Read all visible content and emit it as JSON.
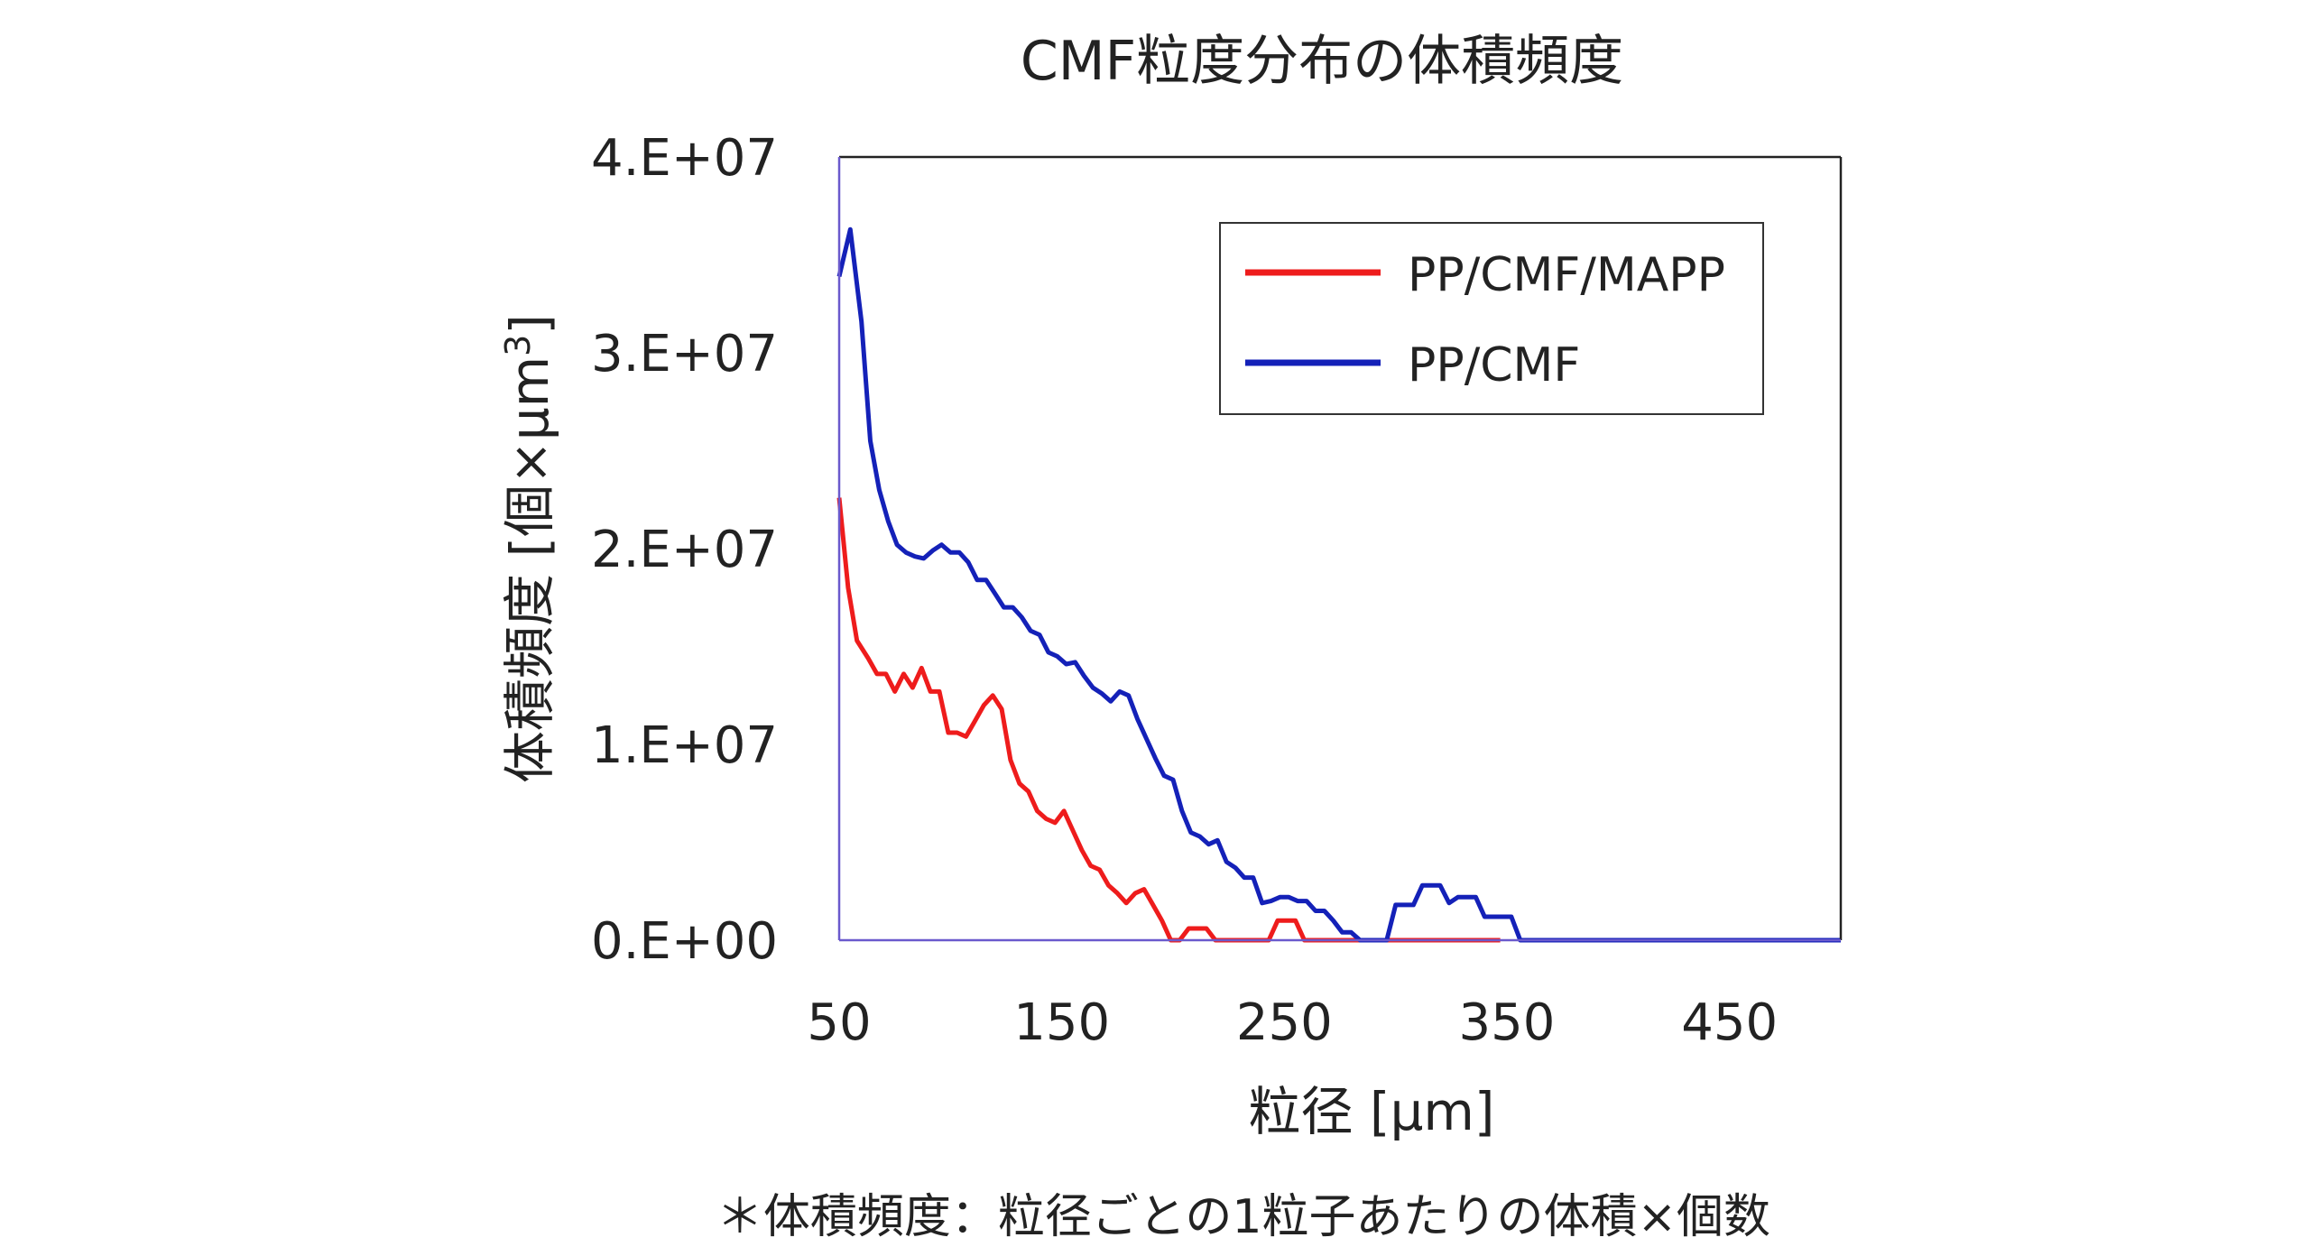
{
  "chart_data": {
    "type": "line",
    "title": "CMF粒度分布の体積頻度",
    "xlabel": "粒径 [μm]",
    "ylabel": "体積頻度 [個×μm",
    "ylabel_sup": "3",
    "ylabel_end": "]",
    "xlim": [
      50,
      500
    ],
    "ylim": [
      0,
      40000000
    ],
    "xticks": [
      50,
      150,
      250,
      350,
      450
    ],
    "xtick_labels": [
      "50",
      "150",
      "250",
      "350",
      "450"
    ],
    "yticks": [
      0,
      10000000,
      20000000,
      30000000,
      40000000
    ],
    "ytick_labels": [
      "0.E+00",
      "1.E+07",
      "2.E+07",
      "3.E+07",
      "4.E+07"
    ],
    "grid": false,
    "legend_position": "top-right",
    "footnote": "＊体積頻度：粒径ごとの1粒子あたりの体積×個数",
    "series": [
      {
        "name": "PP/CMF/MAPP",
        "color": "#ee1c1c",
        "x": [
          50,
          54,
          58,
          63,
          67,
          71,
          75,
          79,
          83,
          87,
          91,
          95,
          99,
          103,
          107,
          111,
          115,
          119,
          123,
          127,
          131,
          135,
          139,
          143,
          147,
          151,
          155,
          159,
          163,
          167,
          171,
          175,
          179,
          183,
          187,
          191,
          195,
          199,
          203,
          207,
          211,
          215,
          219,
          223,
          227,
          231,
          235,
          239,
          243,
          247,
          251,
          255,
          259,
          263,
          267,
          271,
          275,
          279,
          283,
          287,
          291,
          295,
          299,
          303,
          307,
          311,
          315,
          319,
          323,
          327,
          331,
          335,
          339,
          343,
          347
        ],
        "values": [
          22600000,
          18000000,
          15300000,
          14400000,
          13600000,
          13600000,
          12700000,
          13600000,
          12900000,
          13900000,
          12700000,
          12700000,
          10600000,
          10600000,
          10400000,
          11200000,
          12000000,
          12500000,
          11800000,
          9200000,
          8000000,
          7600000,
          6600000,
          6200000,
          6000000,
          6600000,
          5600000,
          4600000,
          3800000,
          3600000,
          2800000,
          2400000,
          1900000,
          2400000,
          2600000,
          1800000,
          1000000,
          0,
          0,
          600000,
          600000,
          600000,
          0,
          0,
          0,
          0,
          0,
          0,
          0,
          1000000,
          1000000,
          1000000,
          0,
          0,
          0,
          0,
          0,
          0,
          0,
          0,
          0,
          0,
          0,
          0,
          0,
          0,
          0,
          0,
          0,
          0,
          0,
          0,
          0,
          0,
          0
        ]
      },
      {
        "name": "PP/CMF",
        "color": "#1421b8",
        "x": [
          50,
          55,
          60,
          64,
          68,
          72,
          76,
          80,
          84,
          88,
          92,
          96,
          100,
          104,
          108,
          112,
          116,
          120,
          124,
          128,
          132,
          136,
          140,
          144,
          148,
          152,
          156,
          160,
          164,
          168,
          172,
          176,
          180,
          184,
          188,
          192,
          196,
          200,
          204,
          208,
          212,
          216,
          220,
          224,
          228,
          232,
          236,
          240,
          244,
          248,
          252,
          256,
          260,
          264,
          268,
          272,
          276,
          280,
          284,
          288,
          292,
          296,
          300,
          304,
          308,
          312,
          316,
          320,
          324,
          328,
          332,
          336,
          340,
          344,
          348,
          352,
          356,
          360,
          364,
          368,
          372,
          376,
          380,
          384,
          388,
          392,
          396,
          400,
          404,
          408,
          412,
          416,
          420,
          424,
          428,
          432,
          436,
          440,
          450,
          460,
          470,
          480,
          490,
          500
        ],
        "values": [
          33900000,
          36300000,
          31600000,
          25500000,
          23000000,
          21400000,
          20200000,
          19800000,
          19600000,
          19500000,
          19900000,
          20200000,
          19800000,
          19800000,
          19300000,
          18400000,
          18400000,
          17700000,
          17000000,
          17000000,
          16500000,
          15800000,
          15600000,
          14700000,
          14500000,
          14100000,
          14200000,
          13500000,
          12900000,
          12600000,
          12200000,
          12700000,
          12500000,
          11300000,
          10300000,
          9300000,
          8400000,
          8200000,
          6600000,
          5500000,
          5300000,
          4900000,
          5100000,
          4000000,
          3700000,
          3200000,
          3200000,
          1900000,
          2000000,
          2200000,
          2200000,
          2000000,
          2000000,
          1500000,
          1500000,
          1000000,
          400000,
          400000,
          0,
          0,
          0,
          0,
          1800000,
          1800000,
          1800000,
          2800000,
          2800000,
          2800000,
          1900000,
          2200000,
          2200000,
          2200000,
          1200000,
          1200000,
          1200000,
          1200000,
          0,
          0,
          0,
          0,
          0,
          0,
          0,
          0,
          0,
          0,
          0,
          0,
          0,
          0,
          0,
          0,
          0,
          0,
          0,
          0,
          0,
          0,
          0,
          0,
          0,
          0,
          0,
          0
        ]
      }
    ]
  }
}
